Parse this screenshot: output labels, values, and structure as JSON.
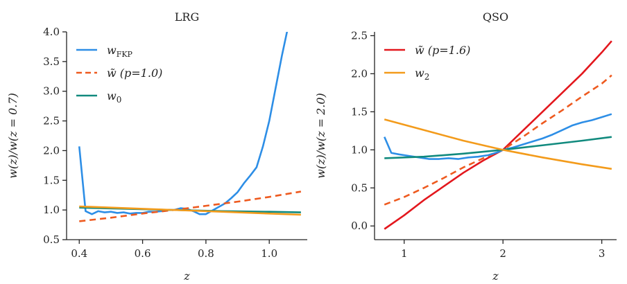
{
  "chart_data": [
    {
      "type": "line",
      "title": "LRG",
      "xlabel": "z",
      "ylabel": "w(z)/w(z = 0.7)",
      "xlim": [
        0.36,
        1.12
      ],
      "ylim": [
        0.5,
        4.0
      ],
      "xticks": [
        "0.4",
        "0.6",
        "0.8",
        "1.0"
      ],
      "xtick_values": [
        0.4,
        0.6,
        0.8,
        1.0
      ],
      "yticks": [
        "0.5",
        "1.0",
        "1.5",
        "2.0",
        "2.5",
        "3.0",
        "3.5",
        "4.0"
      ],
      "ytick_values": [
        0.5,
        1.0,
        1.5,
        2.0,
        2.5,
        3.0,
        3.5,
        4.0
      ],
      "grid": false,
      "legend_position": "top-left",
      "legend": [
        {
          "label": "wFKP",
          "color": "#2d8ee6",
          "dash": "solid",
          "series": "wFKP"
        },
        {
          "label": "w̃ (p=1.0)",
          "color": "#ee5a1f",
          "dash": "dashed",
          "series": "w_tilde_p1.0"
        },
        {
          "label": "w0",
          "color": "#118a7e",
          "dash": "solid",
          "series": "w0"
        }
      ],
      "series": [
        {
          "id": "wFKP",
          "color": "#2d8ee6",
          "dash": "solid",
          "x": [
            0.4,
            0.42,
            0.44,
            0.46,
            0.48,
            0.5,
            0.52,
            0.54,
            0.56,
            0.58,
            0.6,
            0.62,
            0.64,
            0.66,
            0.68,
            0.7,
            0.72,
            0.74,
            0.76,
            0.78,
            0.8,
            0.82,
            0.84,
            0.86,
            0.88,
            0.9,
            0.92,
            0.94,
            0.96,
            0.98,
            1.0,
            1.02,
            1.04,
            1.06
          ],
          "y": [
            2.07,
            0.98,
            0.93,
            0.98,
            0.96,
            0.97,
            0.95,
            0.96,
            0.94,
            0.95,
            0.95,
            0.97,
            0.97,
            0.98,
            1.0,
            1.0,
            1.03,
            1.02,
            0.98,
            0.93,
            0.93,
            0.99,
            1.05,
            1.11,
            1.2,
            1.3,
            1.45,
            1.58,
            1.72,
            2.07,
            2.5,
            3.05,
            3.6,
            4.1
          ]
        },
        {
          "id": "w_tilde_p1.0",
          "color": "#ee5a1f",
          "dash": "dashed",
          "x": [
            0.4,
            0.5,
            0.6,
            0.7,
            0.8,
            0.9,
            1.0,
            1.1
          ],
          "y": [
            0.81,
            0.87,
            0.94,
            1.0,
            1.07,
            1.14,
            1.22,
            1.31
          ]
        },
        {
          "id": "w0",
          "color": "#118a7e",
          "dash": "solid",
          "x": [
            0.4,
            0.55,
            0.7,
            0.85,
            1.0,
            1.1
          ],
          "y": [
            1.04,
            1.02,
            1.0,
            0.98,
            0.97,
            0.96
          ]
        },
        {
          "id": "w2",
          "color": "#f39b1b",
          "dash": "solid",
          "x": [
            0.4,
            0.55,
            0.7,
            0.85,
            1.0,
            1.1
          ],
          "y": [
            1.06,
            1.03,
            1.0,
            0.97,
            0.94,
            0.92
          ]
        }
      ]
    },
    {
      "type": "line",
      "title": "QSO",
      "xlabel": "z",
      "ylabel": "w(z)/w(z = 2.0)",
      "xlim": [
        0.7,
        3.15
      ],
      "ylim": [
        -0.18,
        2.55
      ],
      "xticks": [
        "1",
        "2",
        "3"
      ],
      "xtick_values": [
        1,
        2,
        3
      ],
      "yticks": [
        "0.0",
        "0.5",
        "1.0",
        "1.5",
        "2.0",
        "2.5"
      ],
      "ytick_values": [
        0.0,
        0.5,
        1.0,
        1.5,
        2.0,
        2.5
      ],
      "grid": false,
      "legend_position": "top-left",
      "legend": [
        {
          "label": "w̃ (p=1.6)",
          "color": "#e3171d",
          "dash": "solid",
          "series": "w_tilde_p1.6"
        },
        {
          "label": "w2",
          "color": "#f39b1b",
          "dash": "solid",
          "series": "w2"
        }
      ],
      "series": [
        {
          "id": "w_tilde_p1.6",
          "color": "#e3171d",
          "dash": "solid",
          "x": [
            0.8,
            1.0,
            1.2,
            1.4,
            1.6,
            1.8,
            2.0,
            2.2,
            2.4,
            2.6,
            2.8,
            3.0,
            3.1
          ],
          "y": [
            -0.04,
            0.14,
            0.34,
            0.52,
            0.7,
            0.86,
            1.0,
            1.25,
            1.5,
            1.75,
            2.0,
            2.28,
            2.43
          ]
        },
        {
          "id": "w_tilde_dashed",
          "color": "#ee5a1f",
          "dash": "dashed",
          "x": [
            0.8,
            1.0,
            1.2,
            1.4,
            1.6,
            1.8,
            2.0,
            2.2,
            2.4,
            2.6,
            2.8,
            3.0,
            3.1
          ],
          "y": [
            0.28,
            0.38,
            0.5,
            0.63,
            0.77,
            0.89,
            1.0,
            1.17,
            1.35,
            1.52,
            1.7,
            1.87,
            1.98
          ]
        },
        {
          "id": "wFKP",
          "color": "#2d8ee6",
          "dash": "solid",
          "x": [
            0.8,
            0.87,
            0.95,
            1.05,
            1.15,
            1.25,
            1.35,
            1.45,
            1.55,
            1.65,
            1.75,
            1.85,
            1.95,
            2.0,
            2.1,
            2.2,
            2.3,
            2.4,
            2.5,
            2.6,
            2.7,
            2.8,
            2.9,
            3.0,
            3.1
          ],
          "y": [
            1.17,
            0.96,
            0.94,
            0.92,
            0.9,
            0.88,
            0.88,
            0.89,
            0.88,
            0.9,
            0.91,
            0.93,
            0.97,
            1.0,
            1.03,
            1.07,
            1.11,
            1.15,
            1.2,
            1.26,
            1.32,
            1.36,
            1.39,
            1.43,
            1.47
          ]
        },
        {
          "id": "w0",
          "color": "#118a7e",
          "dash": "solid",
          "x": [
            0.8,
            1.2,
            1.6,
            2.0,
            2.4,
            2.8,
            3.1
          ],
          "y": [
            0.89,
            0.91,
            0.95,
            1.0,
            1.06,
            1.12,
            1.17
          ]
        },
        {
          "id": "w2",
          "color": "#f39b1b",
          "dash": "solid",
          "x": [
            0.8,
            1.2,
            1.6,
            2.0,
            2.4,
            2.8,
            3.1
          ],
          "y": [
            1.4,
            1.26,
            1.12,
            1.0,
            0.9,
            0.81,
            0.75
          ]
        }
      ]
    }
  ]
}
